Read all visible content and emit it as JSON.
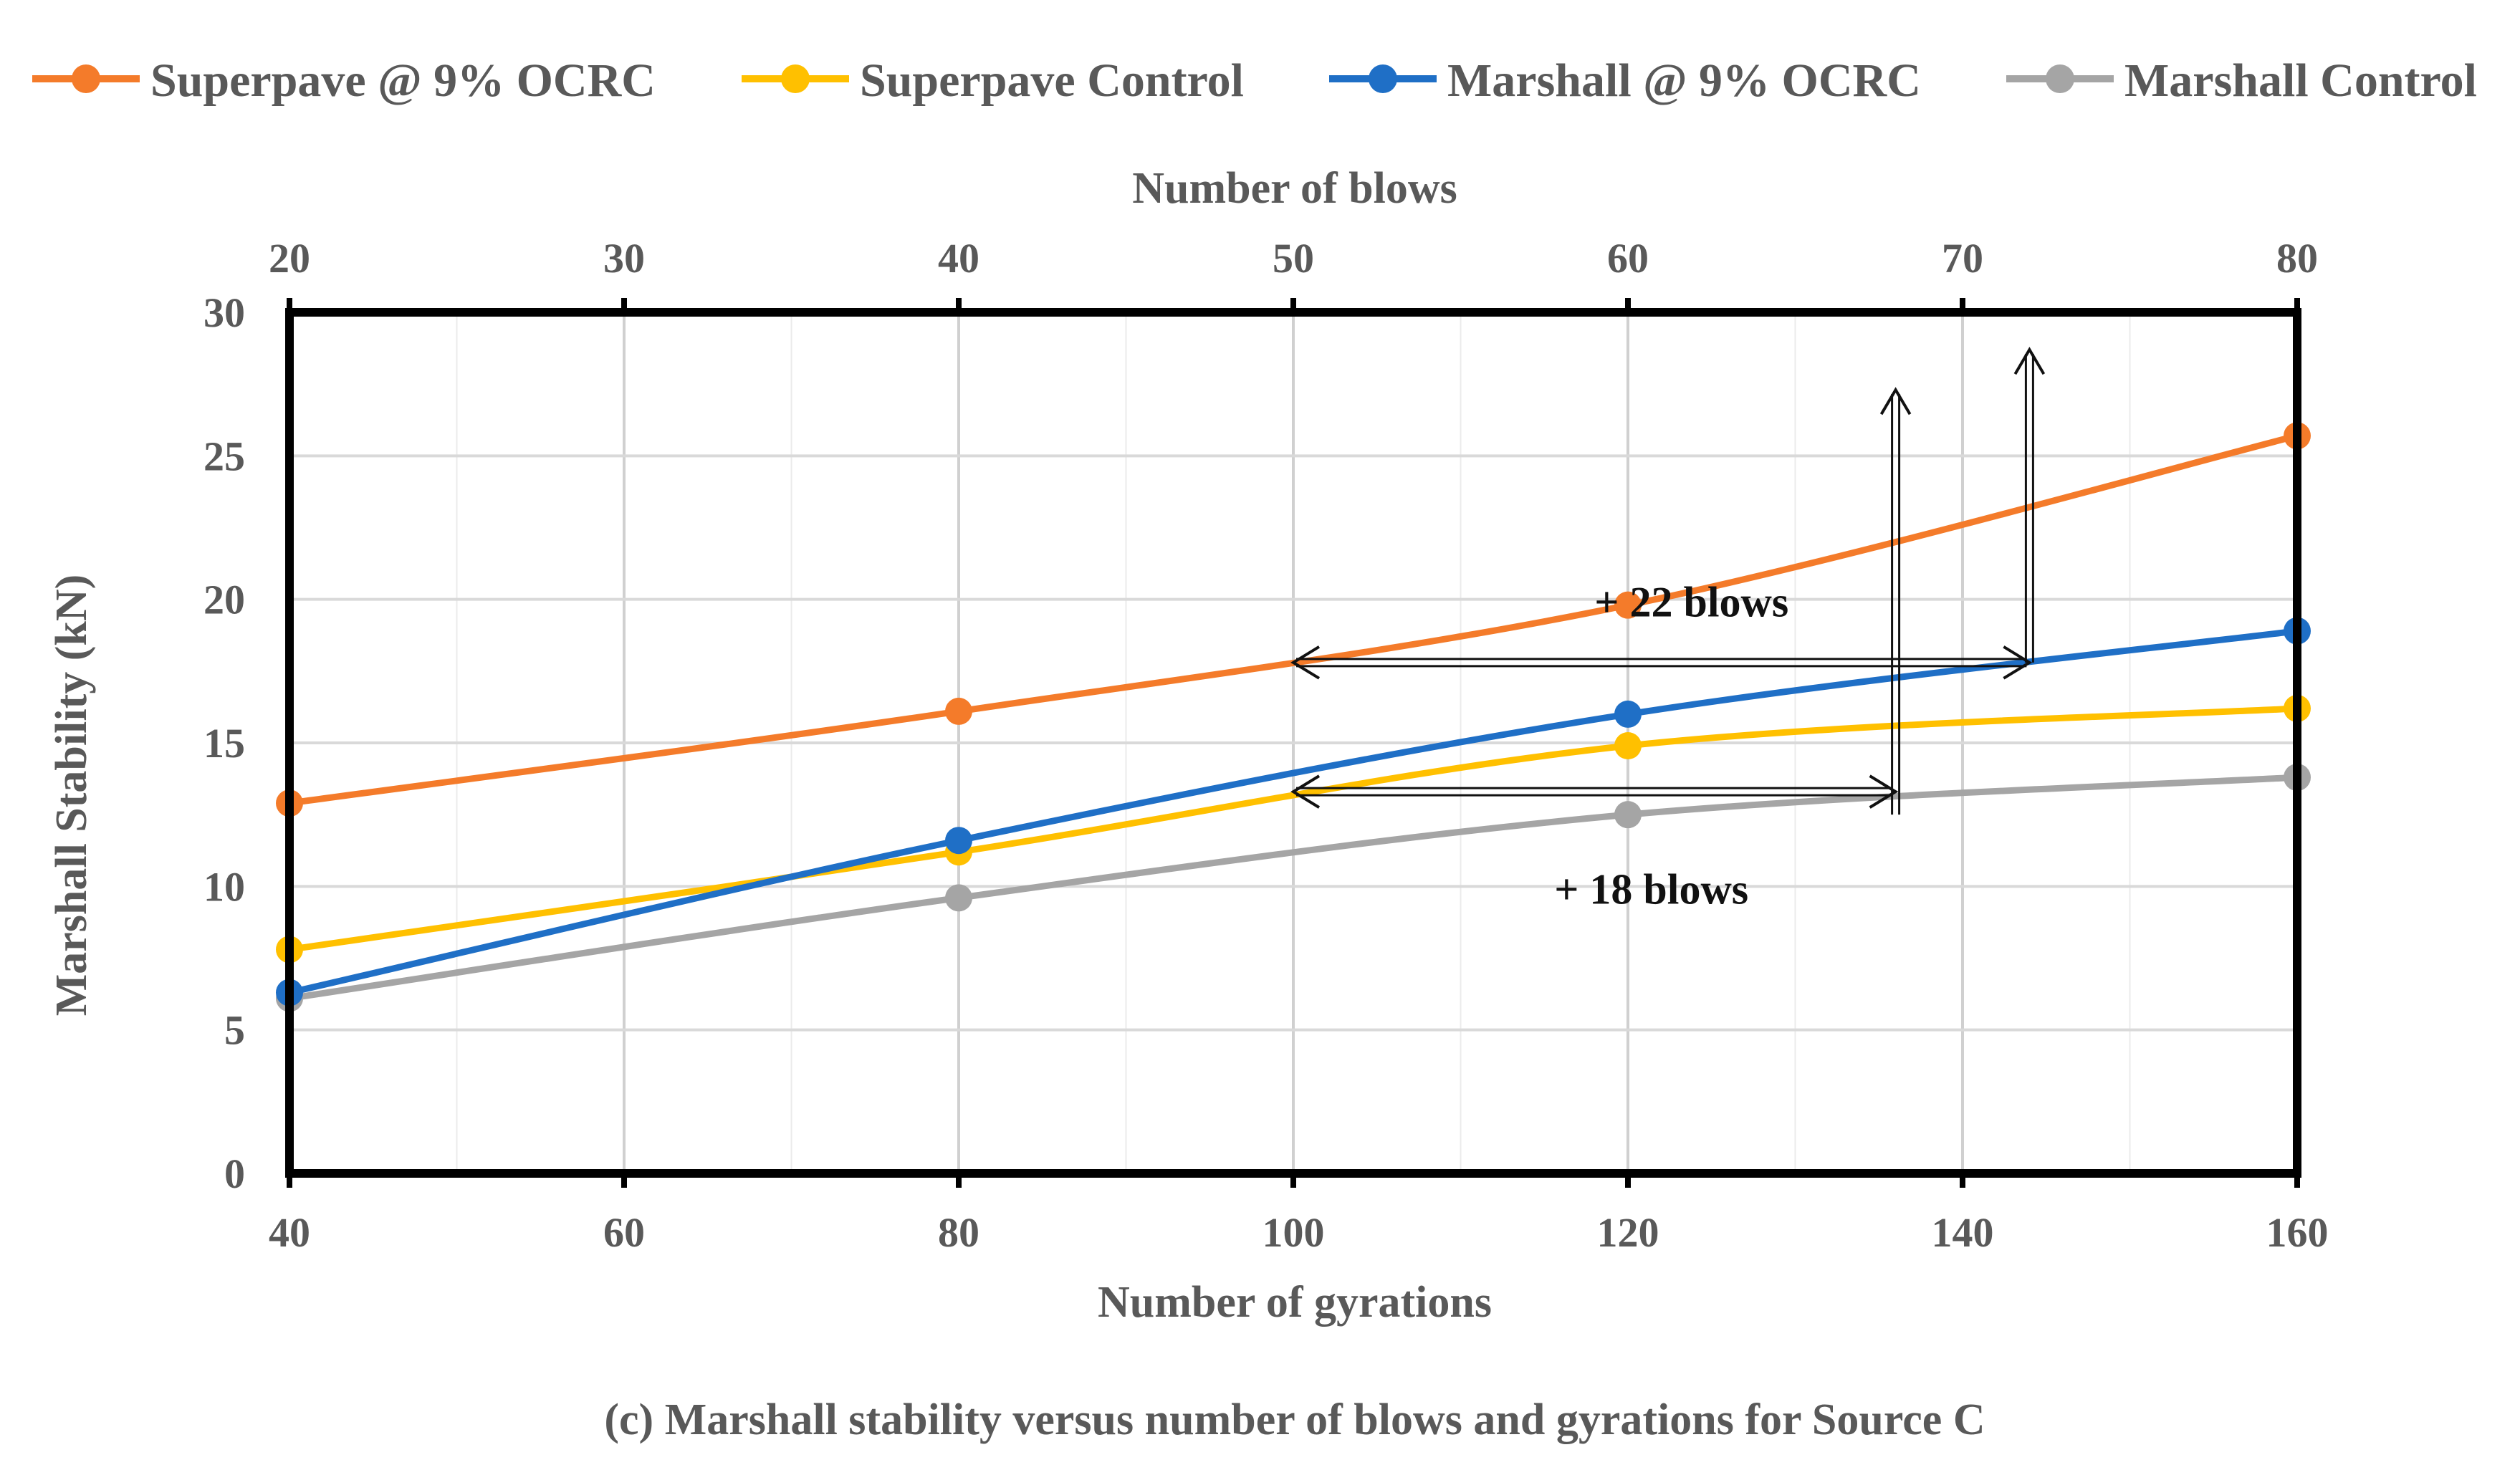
{
  "chart_data": {
    "type": "line",
    "caption": "(c) Marshall stability versus number of blows and gyrations for Source C",
    "xlabel": "Number of  gyrations",
    "ylabel": "Marshall Stability (kN)",
    "x2label": "Number of blows",
    "xlim": [
      40,
      160
    ],
    "ylim": [
      0,
      30
    ],
    "xticks": [
      40,
      60,
      80,
      100,
      120,
      140,
      160
    ],
    "yticks": [
      0,
      5,
      10,
      15,
      20,
      25,
      30
    ],
    "x2ticks": [
      {
        "label": "20",
        "at": 40
      },
      {
        "label": "30",
        "at": 60
      },
      {
        "label": "40",
        "at": 80
      },
      {
        "label": "50",
        "at": 100
      },
      {
        "label": "60",
        "at": 120
      },
      {
        "label": "70",
        "at": 140
      },
      {
        "label": "80",
        "at": 160
      }
    ],
    "grid": true,
    "legend_position": "top",
    "series": [
      {
        "name": "Superpave @ 9% OCRC",
        "color": "#F47B2A",
        "x": [
          40,
          80,
          120,
          160
        ],
        "values": [
          12.9,
          16.1,
          19.8,
          25.7
        ]
      },
      {
        "name": "Superpave Control",
        "color": "#FFC000",
        "x": [
          40,
          80,
          120,
          160
        ],
        "values": [
          7.8,
          11.2,
          14.9,
          16.2
        ]
      },
      {
        "name": "Marshall @ 9% OCRC",
        "color": "#1F6FC6",
        "x": [
          40,
          80,
          120,
          160
        ],
        "values": [
          6.3,
          11.6,
          16.0,
          18.9
        ]
      },
      {
        "name": "Marshall Control",
        "color": "#A5A5A5",
        "x": [
          40,
          80,
          120,
          160
        ],
        "values": [
          6.1,
          9.6,
          12.5,
          13.8
        ]
      }
    ],
    "annotations": [
      {
        "label": "+ 22 blows",
        "from_x": 100,
        "to_x": 144,
        "y": 17.8,
        "up_to_y": 28.7
      },
      {
        "label": "+ 18 blows",
        "from_x": 100,
        "to_x": 136,
        "y": 13.3,
        "up_to_y": 27.3
      }
    ]
  }
}
